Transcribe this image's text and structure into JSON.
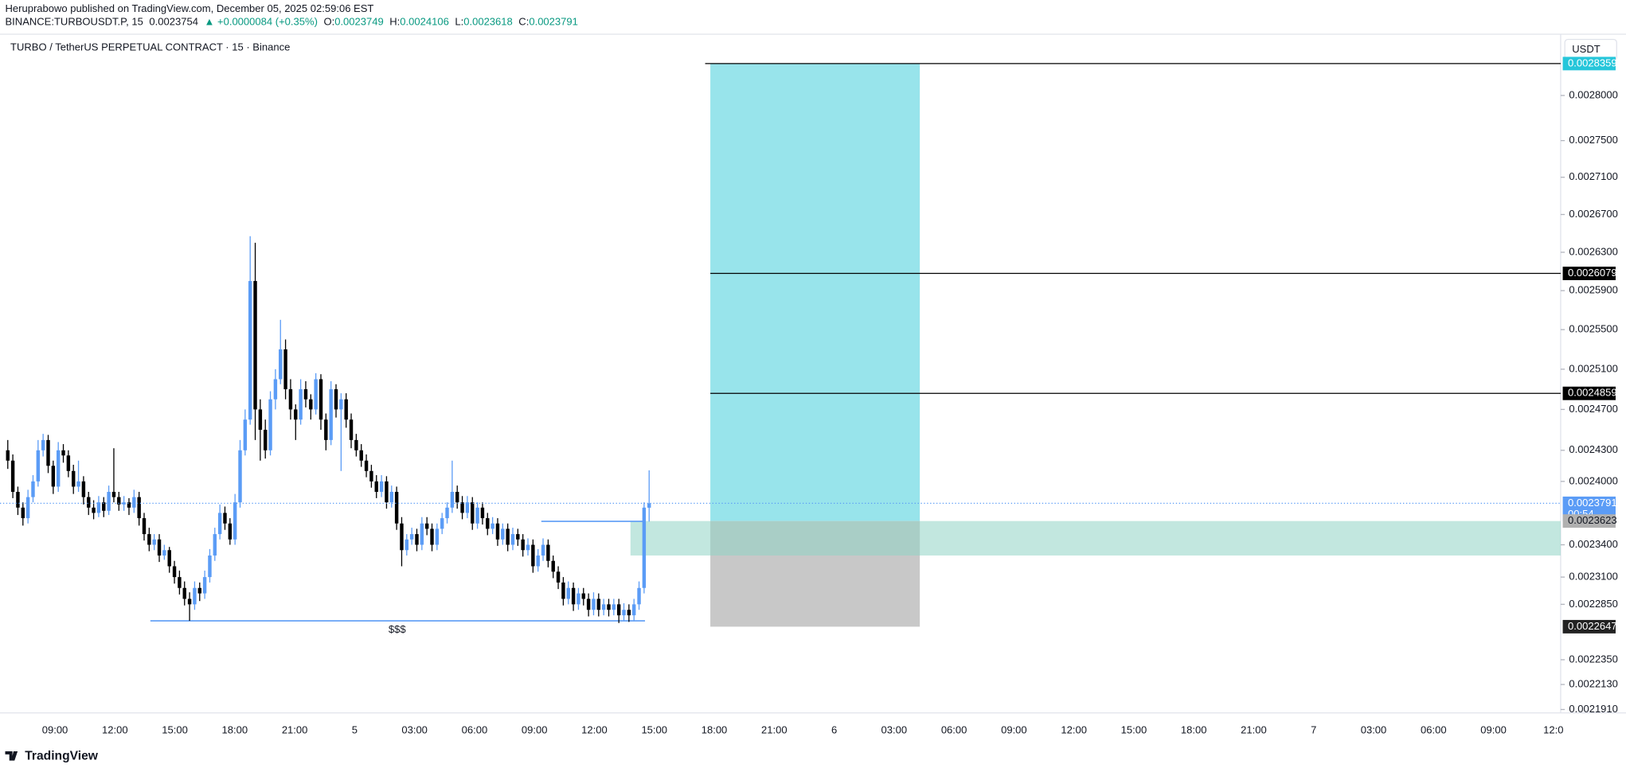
{
  "chart_data": {
    "type": "candlestick",
    "header": {
      "author_line": "Heruprabowo published on TradingView.com, December 05, 2025 02:59:06 EST",
      "symbol": "BINANCE:TURBOUSDT.P, 15",
      "last": "0.0023754",
      "change": "▲ +0.0000084 (+0.35%)",
      "o_label": "O:",
      "o": "0.0023749",
      "h_label": "H:",
      "h": "0.0024106",
      "l_label": "L:",
      "l": "0.0023618",
      "c_label": "C:",
      "c": "0.0023791"
    },
    "title": "TURBO / TetherUS PERPETUAL CONTRACT · 15 · Binance",
    "currency": "USDT",
    "countdown": "00:54",
    "footer": "TradingView",
    "log_scale": true,
    "up_color": "#5b9cf6",
    "down_color": "#000000",
    "ylim": [
      0.002188,
      0.002867
    ],
    "yticks": [
      {
        "value": 0.0028,
        "label": "0.0028000"
      },
      {
        "value": 0.00275,
        "label": "0.0027500"
      },
      {
        "value": 0.00271,
        "label": "0.0027100"
      },
      {
        "value": 0.00267,
        "label": "0.0026700"
      },
      {
        "value": 0.00263,
        "label": "0.0026300"
      },
      {
        "value": 0.00259,
        "label": "0.0025900"
      },
      {
        "value": 0.00255,
        "label": "0.0025500"
      },
      {
        "value": 0.00251,
        "label": "0.0025100"
      },
      {
        "value": 0.00247,
        "label": "0.0024700"
      },
      {
        "value": 0.00243,
        "label": "0.0024300"
      },
      {
        "value": 0.0024,
        "label": "0.0024000"
      },
      {
        "value": 0.00234,
        "label": "0.0023400"
      },
      {
        "value": 0.00231,
        "label": "0.0023100"
      },
      {
        "value": 0.002285,
        "label": "0.0022850"
      },
      {
        "value": 0.002235,
        "label": "0.0022350"
      },
      {
        "value": 0.002213,
        "label": "0.0022130"
      },
      {
        "value": 0.002191,
        "label": "0.0021910"
      }
    ],
    "xtick_labels": [
      "09:00",
      "12:00",
      "15:00",
      "18:00",
      "21:00",
      "5",
      "03:00",
      "06:00",
      "09:00",
      "12:00",
      "15:00",
      "18:00",
      "21:00",
      "6",
      "03:00",
      "06:00",
      "09:00",
      "12:00",
      "15:00",
      "18:00",
      "21:00",
      "7",
      "03:00",
      "06:00",
      "09:00",
      "12:0"
    ],
    "candles": [
      [
        0.00243,
        0.00244,
        0.002412,
        0.00242
      ],
      [
        0.00242,
        0.002426,
        0.002384,
        0.00239
      ],
      [
        0.00239,
        0.002395,
        0.002368,
        0.002375
      ],
      [
        0.002375,
        0.00238,
        0.002358,
        0.002365
      ],
      [
        0.002365,
        0.002392,
        0.00236,
        0.002385
      ],
      [
        0.002385,
        0.002406,
        0.00238,
        0.0024
      ],
      [
        0.0024,
        0.00244,
        0.002395,
        0.00243
      ],
      [
        0.00243,
        0.002446,
        0.002424,
        0.00244
      ],
      [
        0.00244,
        0.002445,
        0.002408,
        0.002415
      ],
      [
        0.002415,
        0.00242,
        0.002388,
        0.002395
      ],
      [
        0.002395,
        0.002438,
        0.00239,
        0.00243
      ],
      [
        0.00243,
        0.002436,
        0.002418,
        0.002425
      ],
      [
        0.002425,
        0.00243,
        0.002404,
        0.00241
      ],
      [
        0.00241,
        0.002416,
        0.002388,
        0.002395
      ],
      [
        0.002395,
        0.00242,
        0.00239,
        0.0024
      ],
      [
        0.0024,
        0.002405,
        0.002378,
        0.002385
      ],
      [
        0.002385,
        0.00239,
        0.002368,
        0.002375
      ],
      [
        0.002375,
        0.002382,
        0.002364,
        0.00237
      ],
      [
        0.00237,
        0.002386,
        0.002366,
        0.00238
      ],
      [
        0.00238,
        0.002385,
        0.002366,
        0.002372
      ],
      [
        0.002372,
        0.002396,
        0.002368,
        0.00239
      ],
      [
        0.00239,
        0.002432,
        0.00238,
        0.002385
      ],
      [
        0.002385,
        0.00239,
        0.002372,
        0.002378
      ],
      [
        0.002378,
        0.002386,
        0.002372,
        0.00238
      ],
      [
        0.00238,
        0.002384,
        0.002368,
        0.002375
      ],
      [
        0.002375,
        0.002392,
        0.00237,
        0.002385
      ],
      [
        0.002385,
        0.00239,
        0.002358,
        0.002365
      ],
      [
        0.002365,
        0.00237,
        0.002344,
        0.00235
      ],
      [
        0.00235,
        0.002356,
        0.002334,
        0.00234
      ],
      [
        0.00234,
        0.00235,
        0.002335,
        0.002345
      ],
      [
        0.002345,
        0.00235,
        0.002324,
        0.00233
      ],
      [
        0.00233,
        0.00234,
        0.002326,
        0.002335
      ],
      [
        0.002335,
        0.002338,
        0.002314,
        0.00232
      ],
      [
        0.00232,
        0.002325,
        0.002304,
        0.00231
      ],
      [
        0.00231,
        0.002316,
        0.002294,
        0.0023
      ],
      [
        0.0023,
        0.002306,
        0.002284,
        0.00229
      ],
      [
        0.00229,
        0.002296,
        0.00227,
        0.002285
      ],
      [
        0.002285,
        0.002306,
        0.00228,
        0.0023
      ],
      [
        0.0023,
        0.002305,
        0.002288,
        0.002295
      ],
      [
        0.002295,
        0.002316,
        0.00229,
        0.00231
      ],
      [
        0.00231,
        0.002336,
        0.002305,
        0.00233
      ],
      [
        0.00233,
        0.002356,
        0.002325,
        0.00235
      ],
      [
        0.00235,
        0.002378,
        0.002345,
        0.00237
      ],
      [
        0.00237,
        0.002376,
        0.002354,
        0.00236
      ],
      [
        0.00236,
        0.002365,
        0.00234,
        0.002345
      ],
      [
        0.002345,
        0.002388,
        0.00234,
        0.00238
      ],
      [
        0.00238,
        0.00244,
        0.002375,
        0.00243
      ],
      [
        0.00243,
        0.00247,
        0.002425,
        0.00246
      ],
      [
        0.00246,
        0.002647,
        0.002455,
        0.0026
      ],
      [
        0.0026,
        0.00264,
        0.00244,
        0.00247
      ],
      [
        0.00247,
        0.00248,
        0.00242,
        0.00245
      ],
      [
        0.00245,
        0.00246,
        0.002422,
        0.00243
      ],
      [
        0.00243,
        0.002488,
        0.002425,
        0.00248
      ],
      [
        0.00248,
        0.00251,
        0.00247,
        0.0025
      ],
      [
        0.0025,
        0.00256,
        0.002495,
        0.00253
      ],
      [
        0.00253,
        0.00254,
        0.00248,
        0.00249
      ],
      [
        0.00249,
        0.0025,
        0.00246,
        0.00247
      ],
      [
        0.00247,
        0.002475,
        0.00244,
        0.00246
      ],
      [
        0.00246,
        0.0025,
        0.002455,
        0.00249
      ],
      [
        0.00249,
        0.002498,
        0.002472,
        0.00248
      ],
      [
        0.00248,
        0.002485,
        0.00246,
        0.00247
      ],
      [
        0.00247,
        0.002506,
        0.002465,
        0.0025
      ],
      [
        0.0025,
        0.002505,
        0.00245,
        0.00246
      ],
      [
        0.00246,
        0.002466,
        0.00243,
        0.00244
      ],
      [
        0.00244,
        0.002498,
        0.002435,
        0.00249
      ],
      [
        0.00249,
        0.002495,
        0.002462,
        0.00247
      ],
      [
        0.00247,
        0.002486,
        0.00241,
        0.00248
      ],
      [
        0.00248,
        0.002486,
        0.002452,
        0.00246
      ],
      [
        0.00246,
        0.002466,
        0.002432,
        0.00244
      ],
      [
        0.00244,
        0.002446,
        0.002424,
        0.00243
      ],
      [
        0.00243,
        0.002436,
        0.002414,
        0.00242
      ],
      [
        0.00242,
        0.002426,
        0.002404,
        0.00241
      ],
      [
        0.00241,
        0.002416,
        0.002394,
        0.0024
      ],
      [
        0.0024,
        0.002406,
        0.002384,
        0.00239
      ],
      [
        0.00239,
        0.002406,
        0.002385,
        0.0024
      ],
      [
        0.0024,
        0.002405,
        0.002374,
        0.00238
      ],
      [
        0.00238,
        0.002396,
        0.002375,
        0.00239
      ],
      [
        0.00239,
        0.002395,
        0.002354,
        0.00236
      ],
      [
        0.00236,
        0.002366,
        0.00232,
        0.002335
      ],
      [
        0.002335,
        0.00235,
        0.00233,
        0.002345
      ],
      [
        0.002345,
        0.002356,
        0.00234,
        0.00235
      ],
      [
        0.00235,
        0.002355,
        0.002334,
        0.00234
      ],
      [
        0.00234,
        0.002366,
        0.002335,
        0.00236
      ],
      [
        0.00236,
        0.002366,
        0.002349,
        0.002355
      ],
      [
        0.002355,
        0.00236,
        0.002334,
        0.00234
      ],
      [
        0.00234,
        0.00236,
        0.002335,
        0.002355
      ],
      [
        0.002355,
        0.00237,
        0.00235,
        0.002365
      ],
      [
        0.002365,
        0.00238,
        0.00236,
        0.002375
      ],
      [
        0.002375,
        0.00242,
        0.00237,
        0.00239
      ],
      [
        0.00239,
        0.002396,
        0.002374,
        0.00238
      ],
      [
        0.00238,
        0.002386,
        0.002364,
        0.00237
      ],
      [
        0.00237,
        0.002386,
        0.002365,
        0.00238
      ],
      [
        0.00238,
        0.002385,
        0.002354,
        0.00236
      ],
      [
        0.00236,
        0.00238,
        0.002355,
        0.002375
      ],
      [
        0.002375,
        0.00238,
        0.002359,
        0.002365
      ],
      [
        0.002365,
        0.00237,
        0.002349,
        0.002355
      ],
      [
        0.002355,
        0.002366,
        0.00235,
        0.00236
      ],
      [
        0.00236,
        0.002365,
        0.002339,
        0.002345
      ],
      [
        0.002345,
        0.00236,
        0.00234,
        0.002355
      ],
      [
        0.002355,
        0.00236,
        0.002334,
        0.00234
      ],
      [
        0.00234,
        0.002356,
        0.002335,
        0.00235
      ],
      [
        0.00235,
        0.002355,
        0.002339,
        0.002345
      ],
      [
        0.002345,
        0.00235,
        0.002329,
        0.002335
      ],
      [
        0.002335,
        0.002346,
        0.00233,
        0.00234
      ],
      [
        0.00234,
        0.002345,
        0.002314,
        0.00232
      ],
      [
        0.00232,
        0.002336,
        0.002315,
        0.00233
      ],
      [
        0.00233,
        0.002346,
        0.002325,
        0.00234
      ],
      [
        0.00234,
        0.002345,
        0.002319,
        0.002325
      ],
      [
        0.002325,
        0.00233,
        0.002309,
        0.002315
      ],
      [
        0.002315,
        0.00232,
        0.002299,
        0.002305
      ],
      [
        0.002305,
        0.00231,
        0.002284,
        0.00229
      ],
      [
        0.00229,
        0.002306,
        0.002285,
        0.0023
      ],
      [
        0.0023,
        0.002305,
        0.002279,
        0.002285
      ],
      [
        0.002285,
        0.0023,
        0.00228,
        0.002295
      ],
      [
        0.002295,
        0.0023,
        0.002284,
        0.00229
      ],
      [
        0.00229,
        0.002295,
        0.002274,
        0.00228
      ],
      [
        0.00228,
        0.002296,
        0.002275,
        0.00229
      ],
      [
        0.00229,
        0.002295,
        0.002274,
        0.00228
      ],
      [
        0.00228,
        0.00229,
        0.002275,
        0.002285
      ],
      [
        0.002285,
        0.00229,
        0.002274,
        0.00228
      ],
      [
        0.00228,
        0.00229,
        0.002275,
        0.002285
      ],
      [
        0.002285,
        0.00229,
        0.002268,
        0.002275
      ],
      [
        0.002275,
        0.002286,
        0.00227,
        0.00228
      ],
      [
        0.00228,
        0.002285,
        0.002269,
        0.002275
      ],
      [
        0.002275,
        0.00229,
        0.00227,
        0.002285
      ],
      [
        0.002285,
        0.002306,
        0.00228,
        0.0023
      ],
      [
        0.0023,
        0.00238,
        0.002295,
        0.002375
      ],
      [
        0.0023749,
        0.0024106,
        0.0023618,
        0.0023791
      ]
    ],
    "position": {
      "target": 0.0028359,
      "entry": 0.0023623,
      "stop": 0.0022647,
      "profit_color": "#98e4eb",
      "loss_color": "#c8c8c8",
      "target_color": "#26c6da",
      "entry_color": "#b0b0b0",
      "stop_color": "#222222"
    },
    "levels": [
      0.0026079,
      0.0024859
    ],
    "zone": {
      "top": 0.0023623,
      "bottom": 0.00233,
      "color": "#8fd3c4"
    },
    "lines": [
      {
        "value": 0.00227,
        "label": "$$$"
      },
      {
        "value": 0.002362
      }
    ]
  }
}
